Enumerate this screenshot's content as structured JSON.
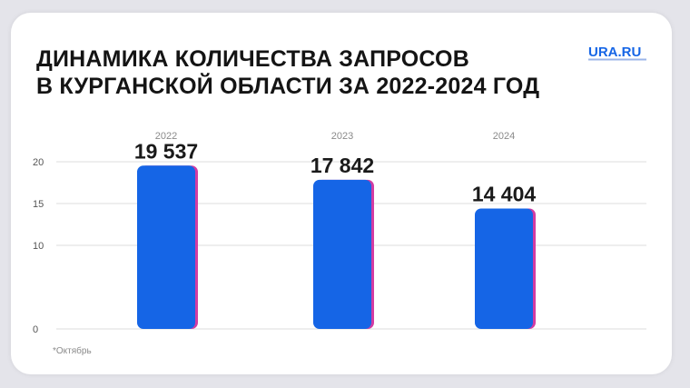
{
  "header": {
    "title_line1": "ДИНАМИКА КОЛИЧЕСТВА ЗАПРОСОВ",
    "title_line2": "В КУРГАНСКОЙ ОБЛАСТИ ЗА 2022-2024 ГОД"
  },
  "logo": {
    "text": "URA.RU",
    "color": "#1565e6"
  },
  "footnote": "*Октябрь",
  "colors": {
    "bar": "#1565e6",
    "bar_edge": "#d23ca3",
    "grid": "#dedede",
    "tick": "#555555",
    "year": "#8a8a8a",
    "value_label": "#1a1a1a"
  },
  "chart_data": {
    "type": "bar",
    "categories": [
      "2022",
      "2023",
      "2024"
    ],
    "values": [
      19537,
      17842,
      14404
    ],
    "value_labels": [
      "19 537",
      "17 842",
      "14 404"
    ],
    "y_ticks": [
      0,
      10,
      15,
      20
    ],
    "ylim": [
      0,
      20000
    ],
    "grid": true,
    "title": "ДИНАМИКА КОЛИЧЕСТВА ЗАПРОСОВ В КУРГАНСКОЙ ОБЛАСТИ ЗА 2022-2024 ГОД",
    "xlabel": "",
    "ylabel": ""
  }
}
